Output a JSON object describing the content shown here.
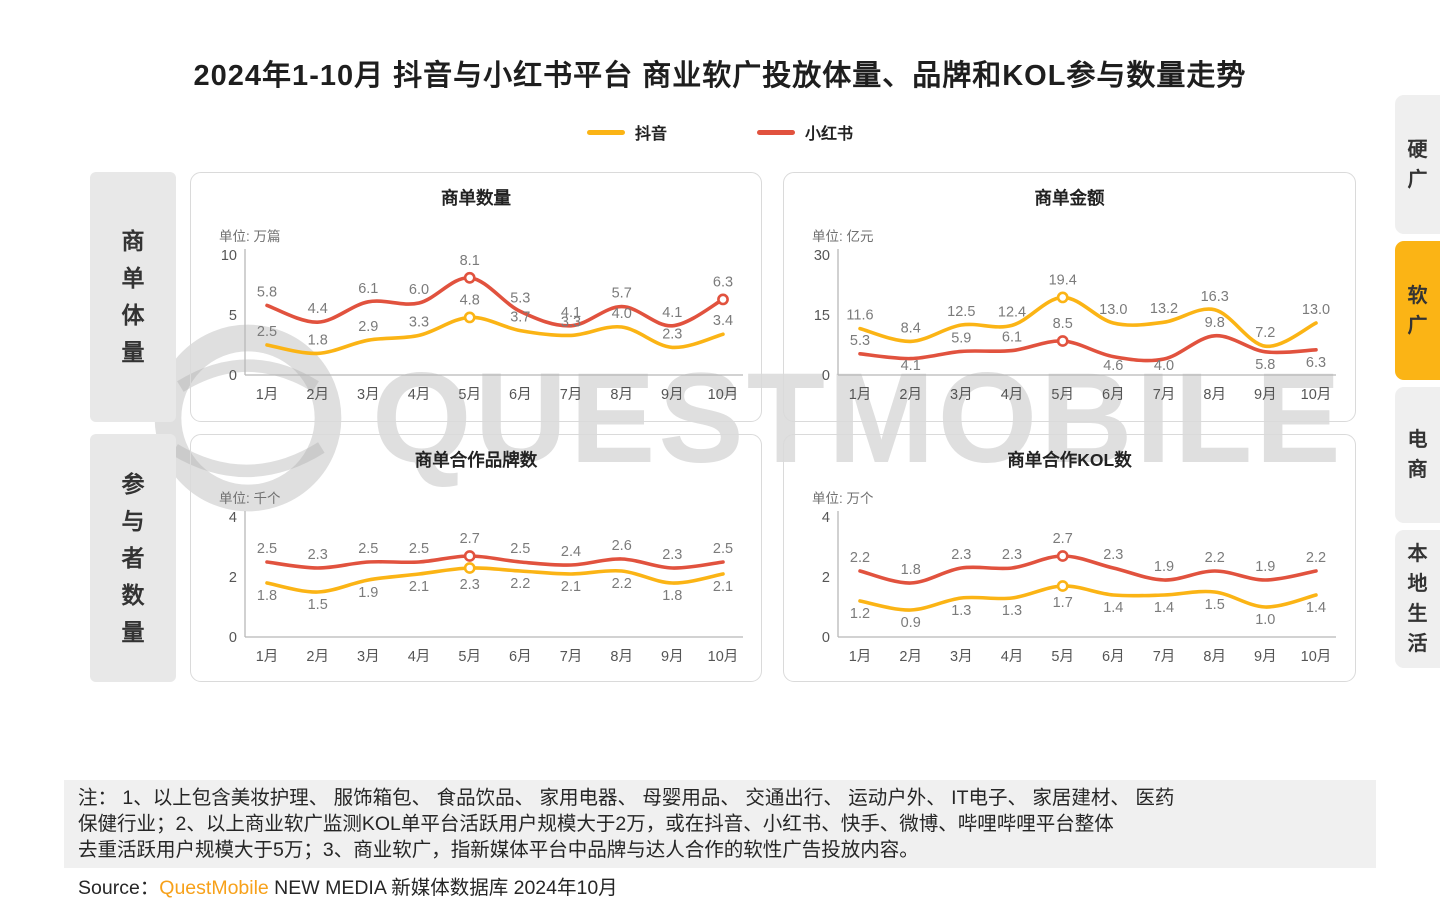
{
  "page": {
    "title": "2024年1-10月 抖音与小红书平台 商业软广投放体量、品牌和KOL参与数量走势"
  },
  "colors": {
    "accent": "#FBB415",
    "panel-border": "#DADADA",
    "gray-box": "#E8E8E8",
    "tab-bg": "#EFEFEF",
    "notes-bg": "#F0F0F0",
    "brand-orange": "#F7A11A"
  },
  "legend": [
    {
      "label": "抖音",
      "color": "#FBB415"
    },
    {
      "label": "小红书",
      "color": "#E1523E"
    }
  ],
  "row_labels": [
    {
      "label": "商单体量"
    },
    {
      "label": "参与者数量"
    }
  ],
  "side_tabs": [
    {
      "label": "硬广",
      "active": false
    },
    {
      "label": "软广",
      "active": true
    },
    {
      "label": "电商",
      "active": false
    },
    {
      "label": "本地生活",
      "active": false
    }
  ],
  "watermark": {
    "text": "QUESTMOBILE"
  },
  "chart_data": [
    {
      "type": "line",
      "title": "商单数量",
      "unit": "单位: 万篇",
      "categories": [
        "1月",
        "2月",
        "3月",
        "4月",
        "5月",
        "6月",
        "7月",
        "8月",
        "9月",
        "10月"
      ],
      "ylim": [
        0,
        10
      ],
      "yticks": [
        0,
        5,
        10
      ],
      "series": [
        {
          "name": "抖音",
          "color": "#FBB415",
          "values": [
            2.5,
            1.8,
            2.9,
            3.3,
            4.8,
            3.7,
            3.3,
            4.0,
            2.3,
            3.4
          ],
          "markers": [
            4
          ],
          "label_side": "above"
        },
        {
          "name": "小红书",
          "color": "#E1523E",
          "values": [
            5.8,
            4.4,
            6.1,
            6.0,
            8.1,
            5.3,
            4.1,
            5.7,
            4.1,
            6.3
          ],
          "markers": [
            4,
            9
          ],
          "label_side": "above"
        }
      ]
    },
    {
      "type": "line",
      "title": "商单金额",
      "unit": "单位: 亿元",
      "categories": [
        "1月",
        "2月",
        "3月",
        "4月",
        "5月",
        "6月",
        "7月",
        "8月",
        "9月",
        "10月"
      ],
      "ylim": [
        0,
        30
      ],
      "yticks": [
        0,
        15,
        30
      ],
      "series": [
        {
          "name": "抖音",
          "color": "#FBB415",
          "values": [
            11.6,
            8.4,
            12.5,
            12.4,
            19.4,
            13.0,
            13.2,
            16.3,
            7.2,
            13.0
          ],
          "markers": [
            4
          ],
          "label_side": "above"
        },
        {
          "name": "小红书",
          "color": "#E1523E",
          "values": [
            5.3,
            4.1,
            5.9,
            6.1,
            8.5,
            4.6,
            4.0,
            9.8,
            5.8,
            6.3
          ],
          "markers": [
            4
          ],
          "label_side": "above",
          "below_indices": [
            1,
            5,
            6,
            8,
            9
          ]
        }
      ]
    },
    {
      "type": "line",
      "title": "商单合作品牌数",
      "unit": "单位: 千个",
      "categories": [
        "1月",
        "2月",
        "3月",
        "4月",
        "5月",
        "6月",
        "7月",
        "8月",
        "9月",
        "10月"
      ],
      "ylim": [
        0,
        4
      ],
      "yticks": [
        0,
        2,
        4
      ],
      "series": [
        {
          "name": "抖音",
          "color": "#FBB415",
          "values": [
            1.8,
            1.5,
            1.9,
            2.1,
            2.3,
            2.2,
            2.1,
            2.2,
            1.8,
            2.1
          ],
          "markers": [
            4
          ],
          "label_side": "below"
        },
        {
          "name": "小红书",
          "color": "#E1523E",
          "values": [
            2.5,
            2.3,
            2.5,
            2.5,
            2.7,
            2.5,
            2.4,
            2.6,
            2.3,
            2.5
          ],
          "markers": [
            4
          ],
          "label_side": "above"
        }
      ]
    },
    {
      "type": "line",
      "title": "商单合作KOL数",
      "unit": "单位: 万个",
      "categories": [
        "1月",
        "2月",
        "3月",
        "4月",
        "5月",
        "6月",
        "7月",
        "8月",
        "9月",
        "10月"
      ],
      "ylim": [
        0,
        4
      ],
      "yticks": [
        0,
        2,
        4
      ],
      "series": [
        {
          "name": "抖音",
          "color": "#FBB415",
          "values": [
            1.2,
            0.9,
            1.3,
            1.3,
            1.7,
            1.4,
            1.4,
            1.5,
            1.0,
            1.4
          ],
          "markers": [
            4
          ],
          "label_side": "below"
        },
        {
          "name": "小红书",
          "color": "#E1523E",
          "values": [
            2.2,
            1.8,
            2.3,
            2.3,
            2.7,
            2.3,
            1.9,
            2.2,
            1.9,
            2.2
          ],
          "markers": [
            4
          ],
          "label_side": "above"
        }
      ]
    }
  ],
  "notes": {
    "lines": [
      "注：  1、以上包含美妆护理、 服饰箱包、 食品饮品、 家用电器、 母婴用品、 交通出行、 运动户外、 IT电子、 家居建材、 医药",
      "保健行业；2、以上商业软广监测KOL单平台活跃用户规模大于2万，或在抖音、小红书、快手、微博、哔哩哔哩平台整体",
      "去重活跃用户规模大于5万；3、商业软广，指新媒体平台中品牌与达人合作的软性广告投放内容。"
    ]
  },
  "source": {
    "prefix": "Source：",
    "brand": "QuestMobile",
    "rest": " NEW MEDIA 新媒体数据库 2024年10月"
  }
}
